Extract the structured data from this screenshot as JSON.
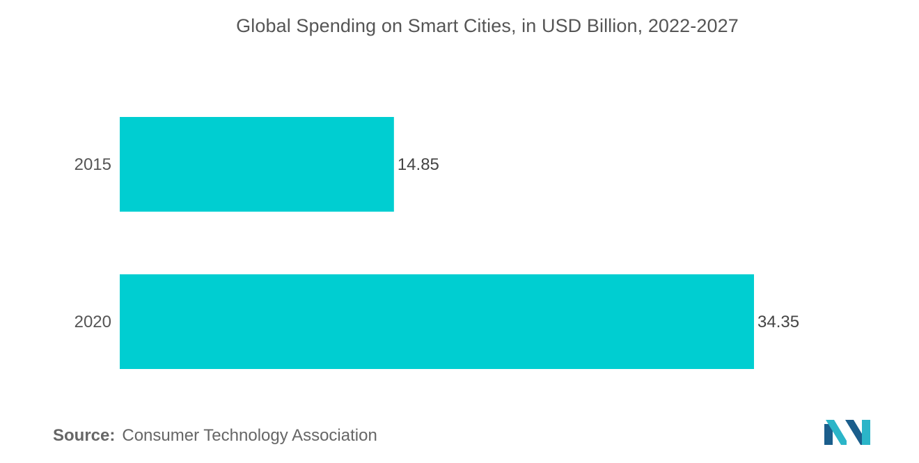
{
  "chart_data": {
    "type": "bar",
    "orientation": "horizontal",
    "title": "Global Spending on Smart Cities, in USD Billion, 2022-2027",
    "categories": [
      "2015",
      "2020"
    ],
    "values": [
      14.85,
      34.35
    ],
    "value_labels": [
      "14.85",
      "34.35"
    ],
    "xlim": [
      0,
      34.35
    ],
    "xlabel": "",
    "ylabel": "",
    "grid": false,
    "legend": "none",
    "bar_color": "#00CED1"
  },
  "source": {
    "label": "Source:",
    "text": "Consumer Technology Association"
  },
  "logo": {
    "icon": "mordor-intelligence-logo",
    "colors": [
      "#1B5E8C",
      "#2BB5C8"
    ]
  }
}
